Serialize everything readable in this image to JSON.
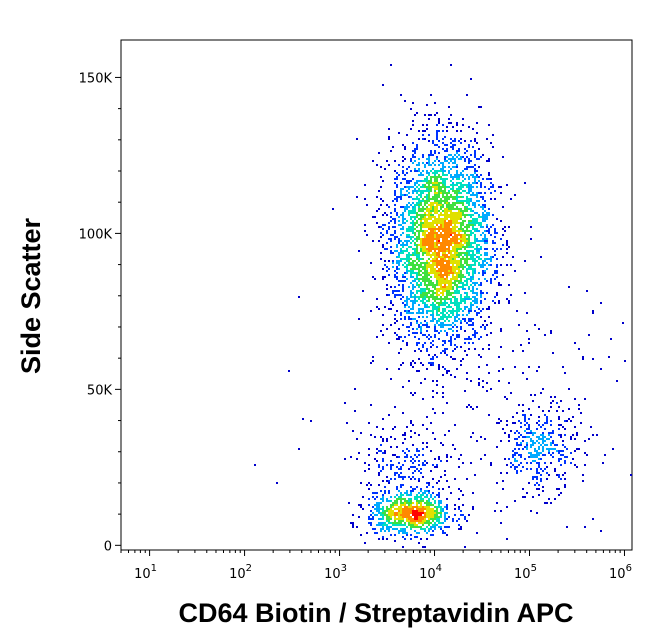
{
  "chart_data": {
    "type": "scatter",
    "title": "",
    "xlabel": "CD64 Biotin / Streptavidin APC",
    "ylabel": "Side Scatter",
    "x_scale": "log",
    "y_scale": "linear",
    "xlim": [
      5,
      1200000
    ],
    "ylim": [
      -1500,
      162000
    ],
    "grid": false,
    "legend": "none",
    "x_ticks": [
      {
        "value": 10,
        "base": "10",
        "exp": "1"
      },
      {
        "value": 100,
        "base": "10",
        "exp": "2"
      },
      {
        "value": 1000,
        "base": "10",
        "exp": "3"
      },
      {
        "value": 10000,
        "base": "10",
        "exp": "4"
      },
      {
        "value": 100000,
        "base": "10",
        "exp": "5"
      },
      {
        "value": 1000000,
        "base": "10",
        "exp": "6"
      }
    ],
    "y_ticks": [
      {
        "value": 0,
        "label": "0"
      },
      {
        "value": 50000,
        "label": "50K"
      },
      {
        "value": 100000,
        "label": "100K"
      },
      {
        "value": 150000,
        "label": "150K"
      }
    ],
    "density_colors": [
      "#0000cc",
      "#0033ff",
      "#00aaff",
      "#00e0c0",
      "#40e040",
      "#e0e000",
      "#ff8800",
      "#ff0000"
    ],
    "populations": [
      {
        "name": "",
        "center": [
          11500,
          97000
        ],
        "spread": [
          0.12,
          16000
        ],
        "count": 4200
      },
      {
        "name": "",
        "center": [
          5500,
          10500
        ],
        "spread": [
          0.1,
          3500
        ],
        "count": 900
      },
      {
        "name": "",
        "center": [
          125000,
          31000
        ],
        "spread": [
          0.09,
          7000
        ],
        "count": 360
      },
      {
        "name": "",
        "center": [
          5500,
          27000
        ],
        "spread": [
          0.12,
          6500
        ],
        "count": 220
      },
      {
        "name": "",
        "center": [
          25000,
          45000
        ],
        "spread": [
          0.45,
          22000
        ],
        "count": 260
      }
    ]
  }
}
